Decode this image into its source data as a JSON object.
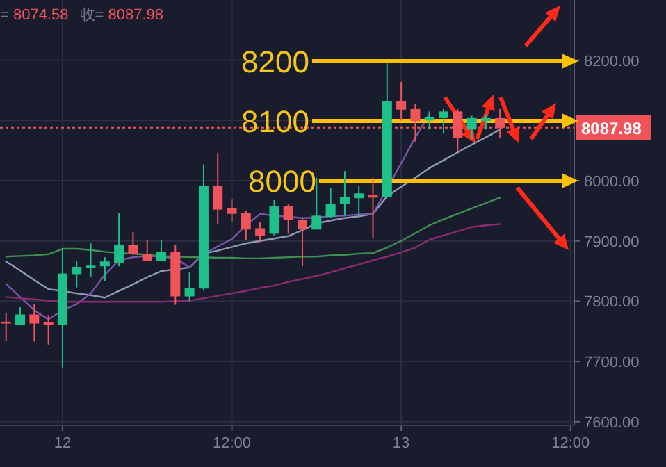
{
  "chart_data": {
    "type": "candlestick",
    "annotations": [
      "= 8074.58",
      "收= 8087.98",
      "8200",
      "8100",
      "8000"
    ],
    "categories": [
      null,
      null,
      null,
      null,
      "12",
      null,
      null,
      null,
      null,
      null,
      null,
      null,
      null,
      null,
      null,
      null,
      "12:00",
      null,
      null,
      null,
      null,
      null,
      null,
      null,
      null,
      null,
      null,
      null,
      "13",
      null,
      null,
      null,
      null,
      null,
      null,
      null,
      null,
      null,
      null,
      null,
      "12:00"
    ],
    "ohlc": [
      [
        7766,
        7781,
        7734,
        7763
      ],
      [
        7761,
        7790,
        7760,
        7778
      ],
      [
        7778,
        7796,
        7733,
        7763
      ],
      [
        7765,
        7777,
        7728,
        7761
      ],
      [
        7761,
        7888,
        7690,
        7846
      ],
      [
        7845,
        7866,
        7823,
        7857
      ],
      [
        7855,
        7896,
        7840,
        7859
      ],
      [
        7858,
        7873,
        7834,
        7866
      ],
      [
        7864,
        7946,
        7858,
        7894
      ],
      [
        7894,
        7915,
        7877,
        7878
      ],
      [
        7879,
        7902,
        7867,
        7867
      ],
      [
        7867,
        7902,
        7867,
        7882
      ],
      [
        7882,
        7894,
        7794,
        7808
      ],
      [
        7808,
        7848,
        7800,
        7822
      ],
      [
        7821,
        8027,
        7818,
        7991
      ],
      [
        7992,
        8046,
        7927,
        7952
      ],
      [
        7955,
        7969,
        7931,
        7945
      ],
      [
        7946,
        7950,
        7901,
        7919
      ],
      [
        7921,
        7931,
        7898,
        7909
      ],
      [
        7912,
        7968,
        7909,
        7958
      ],
      [
        7958,
        7962,
        7912,
        7935
      ],
      [
        7935,
        7938,
        7858,
        7919
      ],
      [
        7919,
        8005,
        7919,
        7942
      ],
      [
        7940,
        7988,
        7938,
        7962
      ],
      [
        7962,
        8016,
        7942,
        7973
      ],
      [
        7971,
        7991,
        7942,
        7979
      ],
      [
        7977,
        8005,
        7904,
        7972
      ],
      [
        7973,
        8196,
        7973,
        8132
      ],
      [
        8132,
        8164,
        8100,
        8118
      ],
      [
        8119,
        8127,
        8065,
        8099
      ],
      [
        8100,
        8115,
        8085,
        8106
      ],
      [
        8104,
        8119,
        8078,
        8115
      ],
      [
        8115,
        8119,
        8048,
        8071
      ],
      [
        8085,
        8108,
        8069,
        8104
      ],
      [
        8099,
        8110,
        8085,
        8104
      ],
      [
        8104,
        8119,
        8071,
        8088
      ],
      null,
      null,
      null,
      null,
      null
    ],
    "series": [
      {
        "type": "line",
        "color": "#8e9cb8",
        "values": [
          7866,
          7851,
          7835,
          7820,
          7817,
          7813,
          7810,
          7806,
          7817,
          7828,
          7840,
          7850,
          7853,
          7856,
          7879,
          7884,
          7890,
          7896,
          7900,
          7904,
          7908,
          7918,
          7929,
          7934,
          7938,
          7941,
          7945,
          7974,
          7990,
          8005,
          8021,
          8034,
          8047,
          8060,
          8072,
          8085,
          null,
          null,
          null,
          null,
          null
        ]
      },
      {
        "type": "line",
        "color": "#7b55a8",
        "values": [
          7829,
          7807,
          7785,
          7770,
          7785,
          7795,
          7813,
          7844,
          7868,
          7873,
          7875,
          7874,
          7871,
          7856,
          7878,
          7891,
          7903,
          7926,
          7945,
          7942,
          7940,
          7938,
          7939,
          7941,
          7942,
          7944,
          7945,
          null,
          8029,
          8072,
          8111,
          null,
          null,
          null,
          null,
          null,
          null,
          null,
          null,
          null,
          null
        ]
      },
      {
        "type": "line",
        "color": "#3f8f52",
        "values": [
          7874,
          7875,
          7876,
          7878,
          7887,
          7887,
          7885,
          7882,
          7880,
          7879,
          7877,
          7875,
          7874,
          7873,
          7873,
          7872,
          7872,
          7871,
          7871,
          7872,
          7873,
          7874,
          7874,
          7876,
          7877,
          7879,
          7880,
          7889,
          7900,
          7913,
          7926,
          7936,
          7945,
          7954,
          7963,
          7972,
          null,
          null,
          null,
          null,
          null
        ]
      },
      {
        "type": "line",
        "color": "#8c2a72",
        "values": [
          7807,
          7805,
          7803,
          7801,
          7799,
          7799,
          7799,
          7799,
          7799,
          7799,
          7799,
          7799,
          7800,
          7801,
          7805,
          7809,
          7813,
          7817,
          7822,
          7826,
          7832,
          7837,
          7842,
          7848,
          7855,
          7861,
          7868,
          7874,
          7881,
          7889,
          7902,
          7909,
          7916,
          7923,
          7926,
          7928,
          null,
          null,
          null,
          null,
          null
        ]
      }
    ],
    "ylim": [
      7594,
      8300
    ],
    "yticks": [
      {
        "value": 7600,
        "label": "7600.00"
      },
      {
        "value": 7700,
        "label": "7700.00"
      },
      {
        "value": 7800,
        "label": "7800.00"
      },
      {
        "value": 7900,
        "label": "7900.00"
      },
      {
        "value": 8000,
        "label": "8000.00"
      },
      {
        "value": 8100,
        "label": null
      },
      {
        "value": 8200,
        "label": "8200.00"
      }
    ],
    "ref_lines": [
      {
        "axis": "y",
        "value": 8087.98,
        "label": "8087.98",
        "color": "#f0545a",
        "line_style": "dotted"
      }
    ],
    "grid": true
  }
}
